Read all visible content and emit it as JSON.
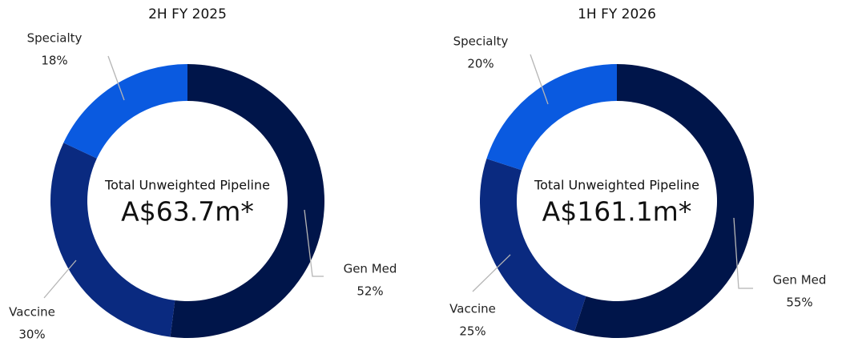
{
  "chart_data": [
    {
      "type": "donut",
      "title": "2H FY 2025",
      "center_label": "Total Unweighted Pipeline",
      "center_value": "A$63.7m*",
      "categories": [
        "Gen Med",
        "Vaccine",
        "Specialty"
      ],
      "values": [
        52,
        30,
        18
      ],
      "value_labels": [
        "52%",
        "30%",
        "18%"
      ],
      "colors": [
        "#00154a",
        "#0a2a80",
        "#0a5ae0"
      ]
    },
    {
      "type": "donut",
      "title": "1H FY 2026",
      "center_label": "Total Unweighted Pipeline",
      "center_value": "A$161.1m*",
      "categories": [
        "Gen Med",
        "Vaccine",
        "Specialty"
      ],
      "values": [
        55,
        25,
        20
      ],
      "value_labels": [
        "55%",
        "25%",
        "20%"
      ],
      "colors": [
        "#00154a",
        "#0a2a80",
        "#0a5ae0"
      ]
    }
  ]
}
